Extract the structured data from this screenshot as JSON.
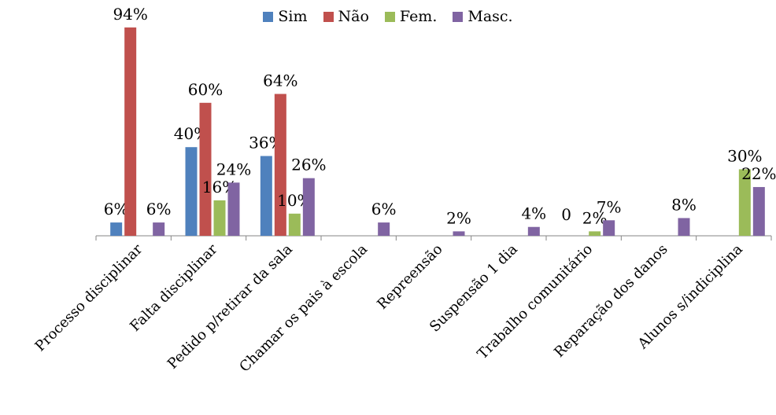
{
  "chart_data": {
    "type": "bar",
    "title": "",
    "xlabel": "",
    "ylabel": "",
    "ylim": [
      0,
      100
    ],
    "grid": false,
    "legend_position": "top",
    "categories": [
      "Processo disciplinar",
      "Falta disciplinar",
      "Pedido p/retirar da sala",
      "Chamar os pais à escola",
      "Repreensão",
      "Suspensão 1 dia",
      "Trabalho comunitário",
      "Reparação dos danos",
      "Alunos s/indiciplina"
    ],
    "series": [
      {
        "name": "Sim",
        "color": "#4F81BD",
        "values": [
          6,
          40,
          36,
          null,
          null,
          null,
          null,
          null,
          null
        ],
        "labels": [
          "6%",
          "40%",
          "36%",
          "",
          "",
          "",
          "",
          "",
          ""
        ]
      },
      {
        "name": "Não",
        "color": "#C0504D",
        "values": [
          94,
          60,
          64,
          null,
          null,
          null,
          null,
          null,
          null
        ],
        "labels": [
          "94%",
          "60%",
          "64%",
          "",
          "",
          "",
          "",
          "",
          ""
        ]
      },
      {
        "name": "Fem.",
        "color": "#9BBB59",
        "values": [
          null,
          16,
          10,
          null,
          null,
          null,
          2,
          null,
          30
        ],
        "labels": [
          "",
          "16%",
          "10%",
          "",
          "",
          "",
          "2%",
          "",
          "30%"
        ]
      },
      {
        "name": "Masc.",
        "color": "#8064A2",
        "values": [
          6,
          24,
          26,
          6,
          2,
          4,
          7,
          8,
          22
        ],
        "labels": [
          "6%",
          "24%",
          "26%",
          "6%",
          "2%",
          "4%",
          "7%",
          "8%",
          "22%"
        ]
      }
    ],
    "extra_labels": [
      {
        "category_index": 6,
        "text": "0"
      }
    ]
  }
}
